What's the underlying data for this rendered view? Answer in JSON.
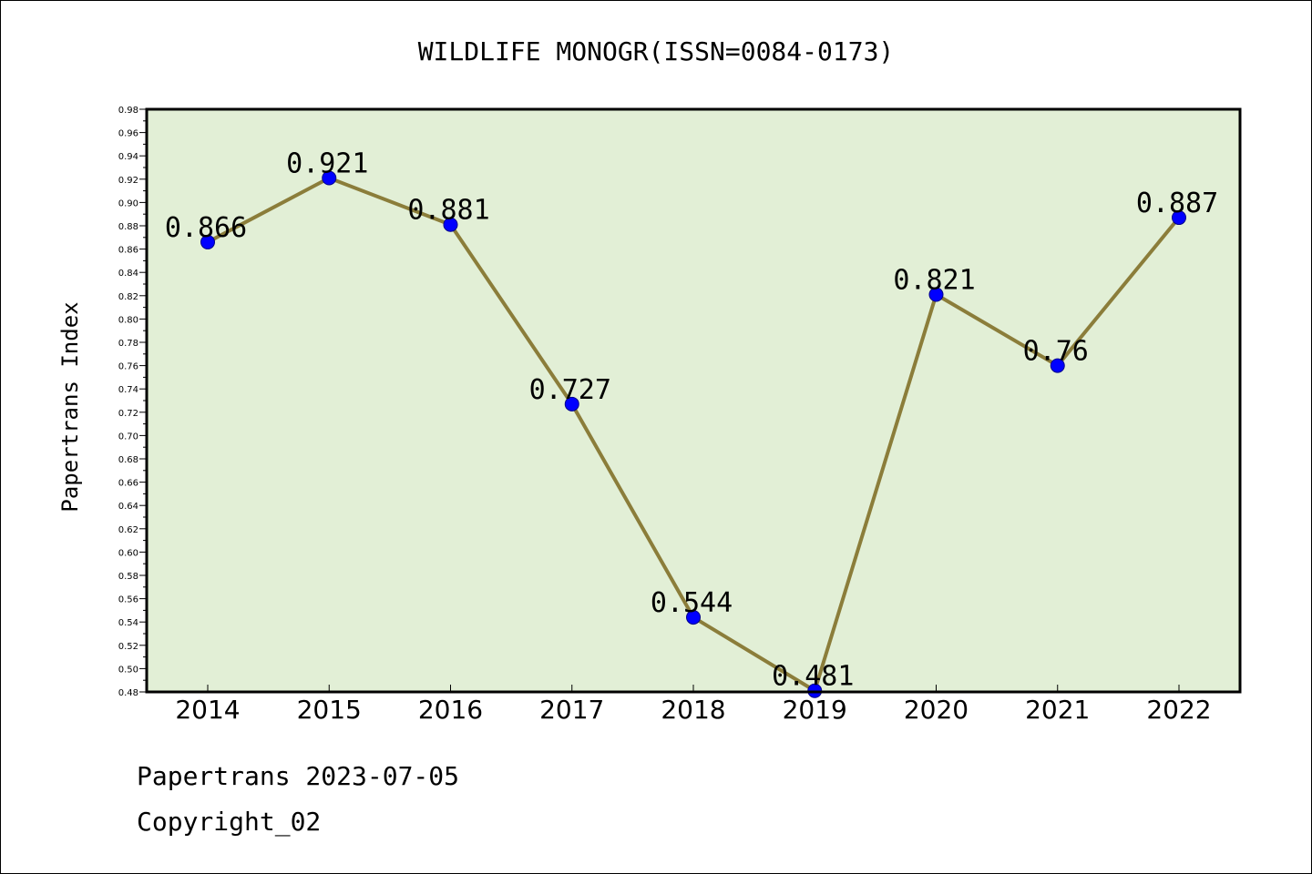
{
  "chart_data": {
    "type": "line",
    "title": "WILDLIFE MONOGR(ISSN=0084-0173)",
    "ylabel": "Papertrans Index",
    "xlabel": "",
    "categories": [
      "2014",
      "2015",
      "2016",
      "2017",
      "2018",
      "2019",
      "2020",
      "2021",
      "2022"
    ],
    "series": [
      {
        "values": [
          0.866,
          0.921,
          0.881,
          0.727,
          0.544,
          0.481,
          0.821,
          0.76,
          0.887
        ],
        "labels": [
          "0.866",
          "0.921",
          "0.881",
          "0.727",
          "0.544",
          "0.481",
          "0.821",
          "0.76",
          "0.887"
        ]
      }
    ],
    "ylim": [
      0.48,
      0.98
    ],
    "ytick_step": 0.02,
    "grid": false,
    "legend": "none",
    "colors": {
      "line": "#8b7d3a",
      "marker": "#0000ff",
      "marker_edge": "#00008b",
      "plot_bg": "#e2efd6",
      "axes": "#000000"
    }
  },
  "footer": {
    "line1": "Papertrans 2023-07-05",
    "line2": "Copyright_02"
  }
}
